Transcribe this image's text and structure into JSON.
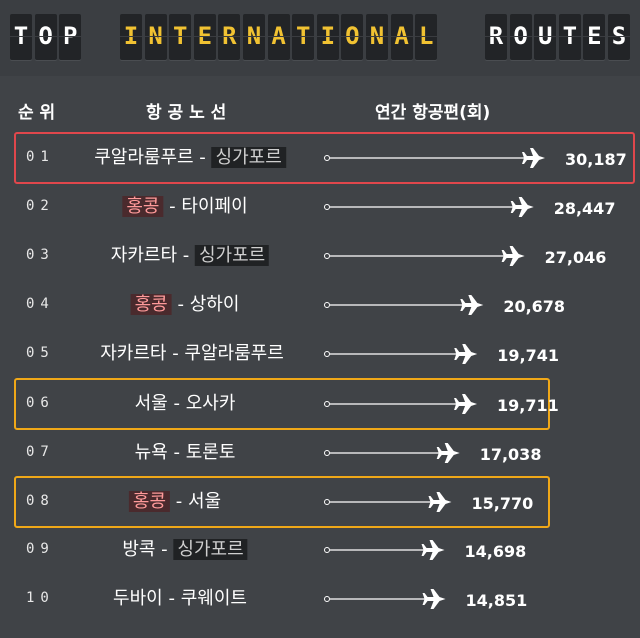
{
  "title_words": [
    {
      "text": "TOP",
      "color": "#ffffff"
    },
    {
      "text": "INTERNATIONAL",
      "color": "#f1c232"
    },
    {
      "text": "ROUTES",
      "color": "#ffffff"
    }
  ],
  "headers": {
    "rank": "순 위",
    "route": "항 공 노 선",
    "flights": "연간  항공편(회)"
  },
  "chart_data": {
    "type": "bar",
    "title": "TOP INTERNATIONAL ROUTES",
    "value_label": "연간  항공편(회)",
    "categories": [
      "쿠알라룸푸르 - 싱가포르",
      "홍콩 - 타이페이",
      "자카르타 - 싱가포르",
      "홍콩 - 상하이",
      "자카르타 - 쿠알라룸푸르",
      "서울 - 오사카",
      "뉴욕 - 토론토",
      "홍콩 - 서울",
      "방콕 - 싱가포르",
      "두바이 - 쿠웨이트"
    ],
    "values": [
      30187,
      28447,
      27046,
      20678,
      19741,
      19711,
      17038,
      15770,
      14698,
      14851
    ]
  },
  "rows": [
    {
      "rank": "01",
      "origin": "쿠알라룸푸르",
      "sep": " - ",
      "dest": "싱가포르",
      "hl": "dest-dark",
      "value": "30,187",
      "frame": "red"
    },
    {
      "rank": "02",
      "origin": "홍콩",
      "sep": " - ",
      "dest": "타이페이",
      "hl": "origin-red",
      "value": "28,447",
      "frame": ""
    },
    {
      "rank": "03",
      "origin": "자카르타",
      "sep": " - ",
      "dest": "싱가포르",
      "hl": "dest-dark",
      "value": "27,046",
      "frame": ""
    },
    {
      "rank": "04",
      "origin": "홍콩",
      "sep": " - ",
      "dest": "상하이",
      "hl": "origin-red",
      "value": "20,678",
      "frame": ""
    },
    {
      "rank": "05",
      "origin": "자카르타",
      "sep": " - ",
      "dest": "쿠알라룸푸르",
      "hl": "",
      "value": "19,741",
      "frame": ""
    },
    {
      "rank": "06",
      "origin": "서울",
      "sep": " - ",
      "dest": "오사카",
      "hl": "",
      "value": "19,711",
      "frame": "yellow"
    },
    {
      "rank": "07",
      "origin": "뉴욕",
      "sep": " - ",
      "dest": "토론토",
      "hl": "",
      "value": "17,038",
      "frame": ""
    },
    {
      "rank": "08",
      "origin": "홍콩",
      "sep": " - ",
      "dest": "서울",
      "hl": "origin-red",
      "value": "15,770",
      "frame": "yellow"
    },
    {
      "rank": "09",
      "origin": "방콕",
      "sep": " - ",
      "dest": "싱가포르",
      "hl": "dest-dark",
      "value": "14,698",
      "frame": ""
    },
    {
      "rank": "10",
      "origin": "두바이",
      "sep": " - ",
      "dest": "쿠웨이트",
      "hl": "",
      "value": "14,851",
      "frame": ""
    }
  ],
  "colors": {
    "frame_red": "#e0474c",
    "frame_yellow": "#f0a818",
    "background": "#404347"
  }
}
